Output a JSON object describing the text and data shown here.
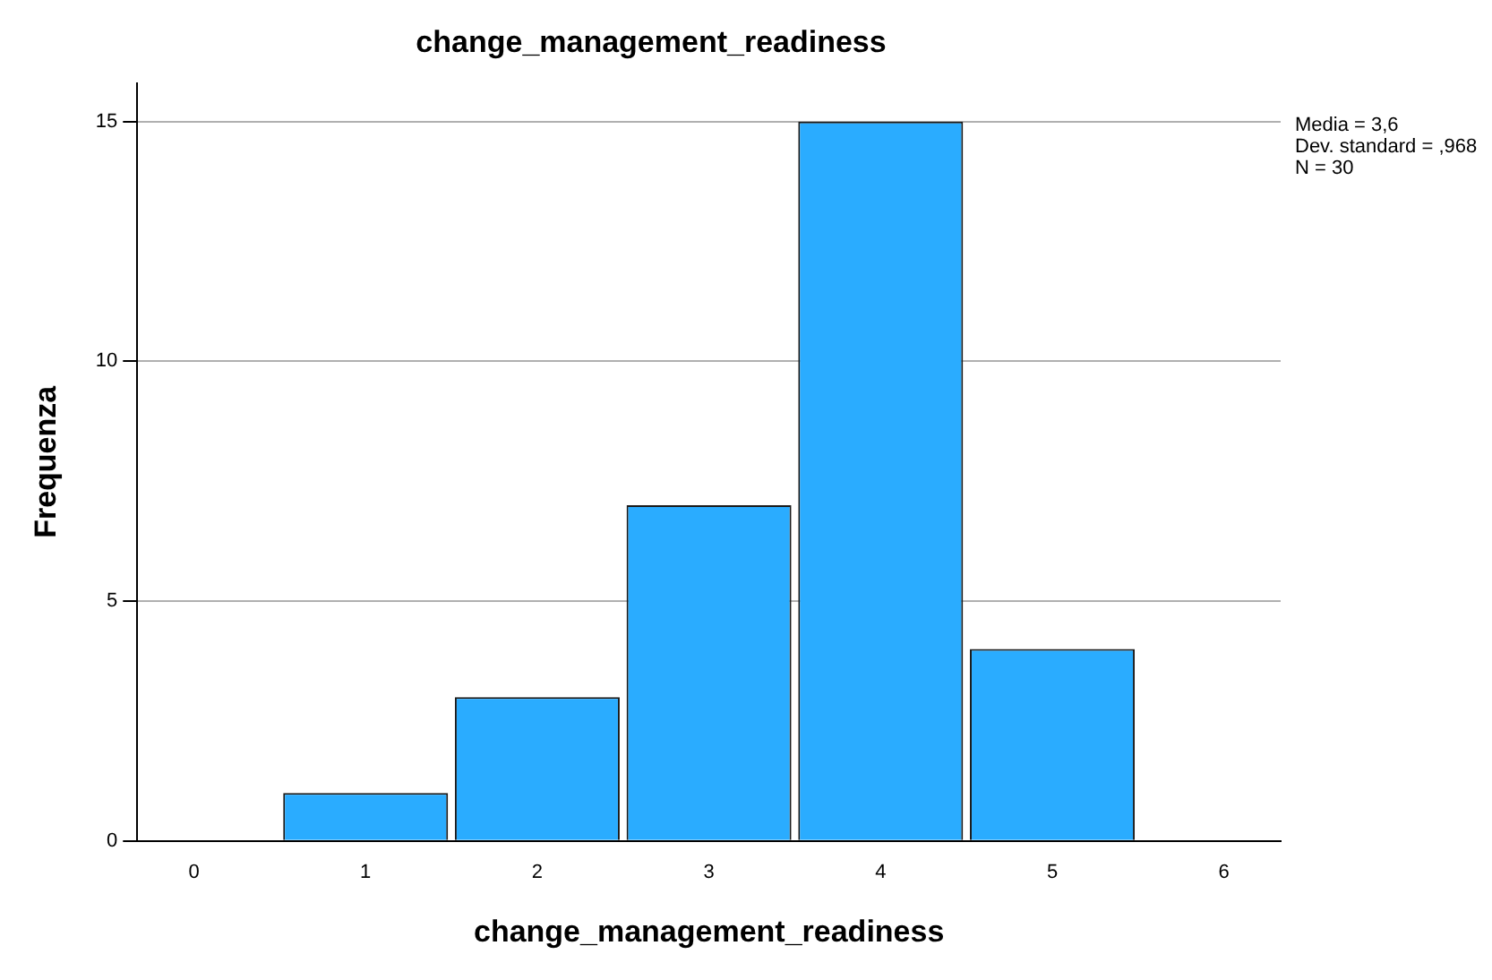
{
  "chart_data": {
    "type": "histogram",
    "title": "change_management_readiness",
    "xlabel": "change_management_readiness",
    "ylabel": "Frequenza",
    "bins": [
      0.5,
      1.5,
      2.5,
      3.5,
      4.5,
      5.5
    ],
    "values": [
      1,
      3,
      7,
      15,
      4
    ],
    "color": "#2aacff",
    "xlim": [
      -0.33,
      6.33
    ],
    "xticks": [
      0,
      1,
      2,
      3,
      4,
      5,
      6
    ],
    "ylim": [
      0,
      15.8
    ],
    "yticks": [
      0,
      5,
      10,
      15
    ],
    "grid": "y",
    "annotations": [
      "Media = 3,6",
      "Dev. standard = ,968",
      "N = 30"
    ]
  }
}
